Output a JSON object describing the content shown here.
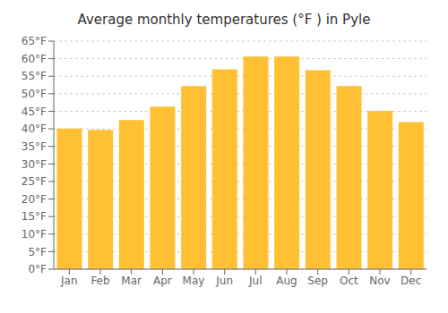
{
  "chart_data": {
    "type": "bar",
    "title": "Average monthly temperatures (°F ) in Pyle",
    "categories": [
      "Jan",
      "Feb",
      "Mar",
      "Apr",
      "May",
      "Jun",
      "Jul",
      "Aug",
      "Sep",
      "Oct",
      "Nov",
      "Dec"
    ],
    "values": [
      40.1,
      39.7,
      42.5,
      46.3,
      52.2,
      57.0,
      60.6,
      60.6,
      56.7,
      52.2,
      45.1,
      41.9
    ],
    "color": "#FFC033",
    "ylim": [
      0,
      65
    ],
    "yticks": [
      {
        "value": 0,
        "label": "0°F"
      },
      {
        "value": 5,
        "label": "5°F"
      },
      {
        "value": 10,
        "label": "10°F"
      },
      {
        "value": 15,
        "label": "15°F"
      },
      {
        "value": 20,
        "label": "20°F"
      },
      {
        "value": 25,
        "label": "25°F"
      },
      {
        "value": 30,
        "label": "30°F"
      },
      {
        "value": 35,
        "label": "35°F"
      },
      {
        "value": 40,
        "label": "40°F"
      },
      {
        "value": 45,
        "label": "45°F"
      },
      {
        "value": 50,
        "label": "50°F"
      },
      {
        "value": 55,
        "label": "55°F"
      },
      {
        "value": 60,
        "label": "60°F"
      },
      {
        "value": 65,
        "label": "65°F"
      }
    ],
    "grid": true
  }
}
